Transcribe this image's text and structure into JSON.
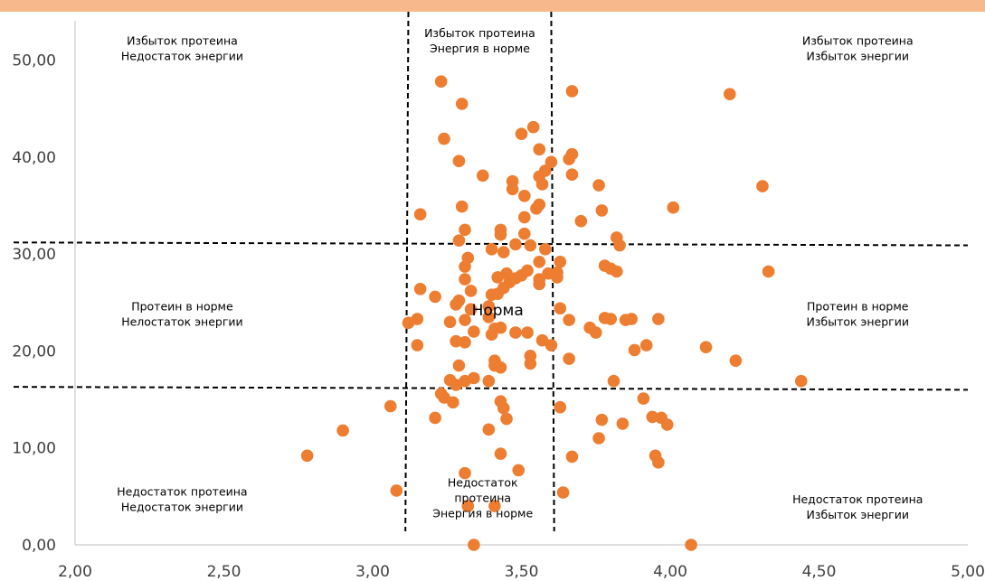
{
  "colors": {
    "top_band": "#f7b98c",
    "point": "#ed7d31",
    "axis": "#bfbfbf",
    "dashed_line": "#000000",
    "tick_text": "#404040"
  },
  "chart_data": {
    "type": "scatter",
    "title": "",
    "xlabel": "",
    "ylabel": "",
    "xlim": [
      2.0,
      5.0
    ],
    "ylim": [
      0.0,
      55.0
    ],
    "x_ticks": [
      "2,00",
      "2,50",
      "3,00",
      "3,50",
      "4,00",
      "4,50",
      "5,00"
    ],
    "x_tick_values": [
      2.0,
      2.5,
      3.0,
      3.5,
      4.0,
      4.5,
      5.0
    ],
    "y_ticks": [
      "0,00",
      "10,00",
      "20,00",
      "30,00",
      "40,00",
      "50,00"
    ],
    "y_tick_values": [
      0,
      10,
      20,
      30,
      40,
      50
    ],
    "grid": false,
    "legend": "none",
    "reference_lines": {
      "vertical_x": [
        [
          3.12,
          3.11
        ],
        [
          3.6,
          3.61
        ]
      ],
      "horizontal_y": [
        [
          31.2,
          30.9
        ],
        [
          16.3,
          16.0
        ]
      ]
    },
    "zone_labels": [
      {
        "lines": [
          "Избыток протеина",
          "Недостаток энергии"
        ],
        "x": 2.36,
        "y": 51.6
      },
      {
        "lines": [
          "Избыток протеина",
          "Энергия в норме"
        ],
        "x": 3.36,
        "y": 52.4
      },
      {
        "lines": [
          "Избыток протеина",
          "Избыток энергии"
        ],
        "x": 4.63,
        "y": 51.6
      },
      {
        "lines": [
          "Протеин в норме",
          "Нелостаток энергии"
        ],
        "x": 2.36,
        "y": 24.2
      },
      {
        "lines": [
          "Протеин в норме",
          "Избыток энергии"
        ],
        "x": 4.63,
        "y": 24.2
      },
      {
        "lines": [
          "Недостаток протеина",
          "Недостаток энергии"
        ],
        "x": 2.36,
        "y": 5.1
      },
      {
        "lines": [
          "Недостаток",
          "протеина",
          "Энергия в норме"
        ],
        "x": 3.37,
        "y": 6.0
      },
      {
        "lines": [
          "Недостаток протеина",
          "Избыток энергии"
        ],
        "x": 4.63,
        "y": 4.3
      }
    ],
    "center_label": {
      "text": "Норма",
      "x": 3.42,
      "y": 23.7
    },
    "series": [
      {
        "points": [
          [
            3.23,
            47.8
          ],
          [
            3.3,
            45.5
          ],
          [
            3.67,
            46.8
          ],
          [
            4.2,
            46.5
          ],
          [
            3.54,
            43.1
          ],
          [
            3.5,
            42.4
          ],
          [
            3.24,
            41.9
          ],
          [
            3.56,
            40.8
          ],
          [
            3.67,
            40.3
          ],
          [
            3.66,
            39.8
          ],
          [
            3.29,
            39.6
          ],
          [
            3.6,
            39.5
          ],
          [
            3.58,
            38.6
          ],
          [
            3.37,
            38.1
          ],
          [
            3.56,
            38.0
          ],
          [
            3.67,
            38.2
          ],
          [
            3.47,
            37.5
          ],
          [
            3.57,
            37.2
          ],
          [
            3.47,
            36.7
          ],
          [
            3.76,
            37.1
          ],
          [
            4.31,
            37.0
          ],
          [
            3.51,
            36.0
          ],
          [
            3.3,
            34.9
          ],
          [
            3.56,
            35.1
          ],
          [
            3.55,
            34.7
          ],
          [
            3.77,
            34.5
          ],
          [
            4.01,
            34.8
          ],
          [
            3.16,
            34.1
          ],
          [
            3.51,
            33.8
          ],
          [
            3.7,
            33.4
          ],
          [
            3.31,
            32.5
          ],
          [
            3.43,
            32.5
          ],
          [
            3.43,
            32.0
          ],
          [
            3.51,
            32.1
          ],
          [
            3.29,
            31.4
          ],
          [
            3.48,
            31.0
          ],
          [
            3.53,
            30.9
          ],
          [
            3.58,
            30.5
          ],
          [
            3.4,
            30.5
          ],
          [
            3.44,
            30.2
          ],
          [
            3.82,
            31.7
          ],
          [
            3.83,
            30.9
          ],
          [
            3.32,
            29.6
          ],
          [
            3.56,
            29.2
          ],
          [
            3.63,
            29.2
          ],
          [
            3.31,
            28.7
          ],
          [
            3.45,
            28.0
          ],
          [
            3.52,
            28.3
          ],
          [
            3.5,
            27.8
          ],
          [
            3.48,
            27.5
          ],
          [
            3.42,
            27.6
          ],
          [
            3.56,
            27.4
          ],
          [
            3.59,
            28.0
          ],
          [
            3.62,
            28.1
          ],
          [
            3.62,
            27.6
          ],
          [
            3.78,
            28.8
          ],
          [
            3.8,
            28.5
          ],
          [
            3.82,
            28.2
          ],
          [
            4.33,
            28.2
          ],
          [
            3.31,
            27.4
          ],
          [
            3.46,
            27.1
          ],
          [
            3.56,
            26.9
          ],
          [
            3.44,
            26.5
          ],
          [
            3.16,
            26.4
          ],
          [
            3.33,
            26.2
          ],
          [
            3.21,
            25.6
          ],
          [
            3.4,
            25.8
          ],
          [
            3.42,
            25.9
          ],
          [
            3.29,
            25.2
          ],
          [
            3.28,
            24.8
          ],
          [
            3.33,
            24.3
          ],
          [
            3.39,
            24.6
          ],
          [
            3.63,
            24.4
          ],
          [
            3.31,
            23.2
          ],
          [
            3.26,
            23.0
          ],
          [
            3.39,
            23.5
          ],
          [
            3.15,
            23.3
          ],
          [
            3.12,
            22.9
          ],
          [
            3.66,
            23.2
          ],
          [
            3.78,
            23.4
          ],
          [
            3.8,
            23.3
          ],
          [
            3.85,
            23.2
          ],
          [
            3.87,
            23.3
          ],
          [
            3.96,
            23.3
          ],
          [
            3.73,
            22.4
          ],
          [
            3.75,
            21.9
          ],
          [
            3.41,
            22.3
          ],
          [
            3.43,
            22.4
          ],
          [
            3.34,
            22.0
          ],
          [
            3.48,
            21.9
          ],
          [
            3.52,
            21.9
          ],
          [
            3.4,
            21.7
          ],
          [
            3.28,
            21.0
          ],
          [
            3.31,
            20.9
          ],
          [
            3.57,
            21.1
          ],
          [
            3.6,
            20.6
          ],
          [
            3.15,
            20.6
          ],
          [
            3.88,
            20.1
          ],
          [
            3.92,
            20.6
          ],
          [
            4.12,
            20.4
          ],
          [
            3.53,
            19.5
          ],
          [
            3.53,
            18.7
          ],
          [
            3.41,
            19.0
          ],
          [
            3.41,
            18.5
          ],
          [
            3.66,
            19.2
          ],
          [
            3.43,
            18.3
          ],
          [
            3.29,
            18.5
          ],
          [
            4.22,
            19.0
          ],
          [
            3.26,
            17.0
          ],
          [
            3.34,
            17.2
          ],
          [
            3.28,
            16.5
          ],
          [
            3.31,
            16.9
          ],
          [
            3.39,
            16.9
          ],
          [
            3.81,
            16.9
          ],
          [
            4.44,
            16.9
          ],
          [
            3.23,
            15.6
          ],
          [
            3.24,
            15.2
          ],
          [
            3.27,
            14.7
          ],
          [
            3.43,
            14.8
          ],
          [
            3.44,
            14.1
          ],
          [
            3.91,
            15.1
          ],
          [
            3.06,
            14.3
          ],
          [
            3.63,
            14.2
          ],
          [
            3.21,
            13.1
          ],
          [
            3.45,
            13.0
          ],
          [
            3.77,
            12.9
          ],
          [
            3.84,
            12.5
          ],
          [
            3.94,
            13.2
          ],
          [
            3.97,
            13.1
          ],
          [
            3.99,
            12.4
          ],
          [
            3.39,
            11.9
          ],
          [
            2.9,
            11.8
          ],
          [
            3.76,
            11.0
          ],
          [
            2.78,
            9.2
          ],
          [
            3.43,
            9.4
          ],
          [
            3.67,
            9.1
          ],
          [
            3.95,
            9.2
          ],
          [
            3.96,
            8.5
          ],
          [
            3.49,
            7.7
          ],
          [
            3.31,
            7.4
          ],
          [
            3.08,
            5.6
          ],
          [
            3.64,
            5.4
          ],
          [
            3.32,
            4.0
          ],
          [
            3.41,
            4.0
          ],
          [
            3.34,
            0.0
          ],
          [
            4.07,
            0.0
          ]
        ]
      }
    ]
  }
}
